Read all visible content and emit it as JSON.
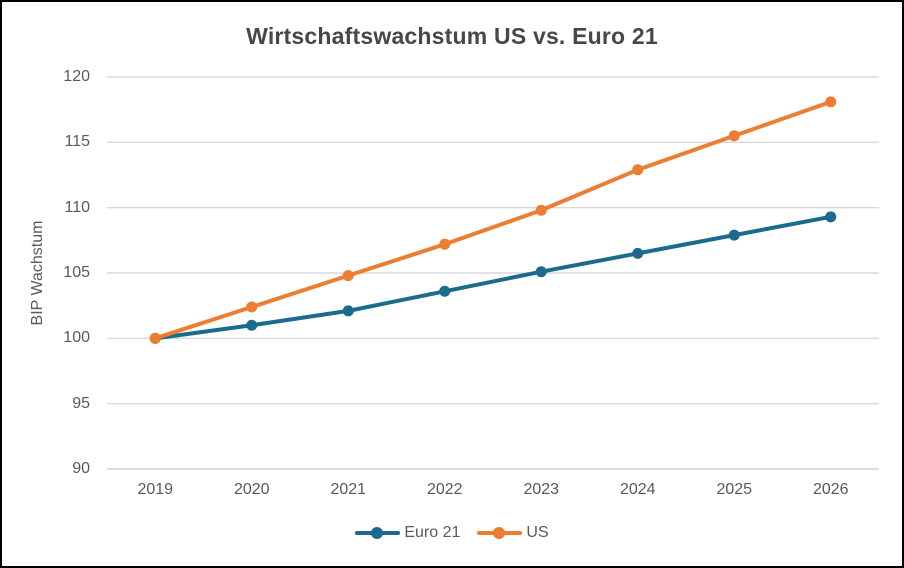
{
  "frame": {
    "background": "#ffffff",
    "border_color": "#000000"
  },
  "chart_data": {
    "type": "line",
    "title": "Wirtschaftswachstum US vs. Euro 21",
    "xlabel": "",
    "ylabel": "BIP Wachstum",
    "categories": [
      "2019",
      "2020",
      "2021",
      "2022",
      "2023",
      "2024",
      "2025",
      "2026"
    ],
    "series": [
      {
        "name": "Euro 21",
        "color": "#1B6B8C",
        "values": [
          100,
          101.0,
          102.1,
          103.6,
          105.1,
          106.5,
          107.9,
          109.3
        ]
      },
      {
        "name": "US",
        "color": "#ED7D31",
        "values": [
          100,
          102.4,
          104.8,
          107.2,
          109.8,
          112.9,
          115.5,
          118.1
        ]
      }
    ],
    "ylim": [
      90,
      120
    ],
    "yticks": [
      90,
      95,
      100,
      105,
      110,
      115,
      120
    ],
    "ytick_step": 5,
    "grid": true,
    "legend_position": "bottom",
    "gridline_color": "#D9D9D9",
    "axis_line_color": "#D0D0D0",
    "title_color": "#474747",
    "tick_label_color": "#595959",
    "marker_style": "circle",
    "line_width": 4
  }
}
